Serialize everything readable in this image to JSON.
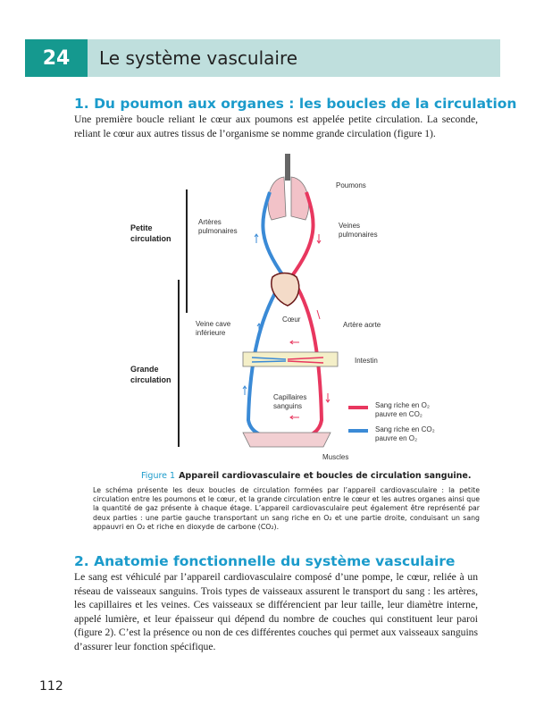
{
  "header": {
    "chapter_number": "24",
    "chapter_title": "Le système vasculaire"
  },
  "section1": {
    "title": "1. Du poumon aux organes : les boucles de la circulation",
    "text": "Une première boucle reliant le cœur aux poumons est appelée petite circulation. La seconde, reliant le cœur aux autres tissus de l’organisme se nomme grande circulation (figure 1)."
  },
  "figure": {
    "labels": {
      "poumons": "Poumons",
      "arteres_pulmonaires": "Artères pulmonaires",
      "veines_pulmonaires": "Veines pulmonaires",
      "coeur": "Cœur",
      "veine_cave": "Veine cave inférieure",
      "artere_aorte": "Artère aorte",
      "intestin": "Intestin",
      "capillaires": "Capillaires sanguins",
      "muscles": "Muscles",
      "petite": "Petite circulation",
      "grande": "Grande circulation"
    },
    "legend": [
      {
        "label_a": "Sang riche en O₂",
        "label_b": "pauvre en CO₂",
        "color": "#e8375f"
      },
      {
        "label_a": "Sang riche en CO₂",
        "label_b": "pauvre en O₂",
        "color": "#3a8ad6"
      }
    ],
    "caption_label": "Figure 1",
    "caption_title": "Appareil cardiovasculaire et boucles de circulation sanguine.",
    "caption_text": "Le schéma présente les deux boucles de circulation formées par l’appareil cardiovasculaire : la petite circulation entre les poumons et le cœur, et la grande circulation entre le cœur et les autres organes ainsi que la quantité de gaz présente à chaque étage. L’appareil cardiovasculaire peut également être représenté par deux parties : une partie gauche transportant un sang riche en O₂ et une partie droite, conduisant un sang appauvri en O₂ et riche en dioxyde de carbone (CO₂)."
  },
  "section2": {
    "title": "2. Anatomie fonctionnelle du système vasculaire",
    "text": "Le sang est véhiculé par l’appareil cardiovasculaire composé d’une pompe, le cœur, reliée à un réseau de vaisseaux sanguins. Trois types de vaisseaux assurent le transport du sang : les artères, les capillaires et les veines. Ces vaisseaux se différencient par leur taille, leur diamètre interne, appelé lumière, et leur épaisseur qui dépend du nombre de couches qui constituent leur paroi (figure 2). C’est la présence ou non de ces différentes couches qui permet aux vaisseaux sanguins d’assurer leur fonction spécifique."
  },
  "page_number": "112"
}
